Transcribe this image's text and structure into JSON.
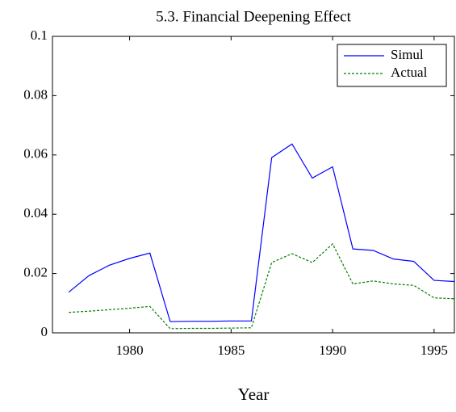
{
  "chart_data": {
    "type": "line",
    "title": "5.3. Financial Deepening Effect",
    "x_label": "Year",
    "x": [
      1977,
      1978,
      1979,
      1980,
      1981,
      1982,
      1983,
      1984,
      1985,
      1986,
      1987,
      1988,
      1989,
      1990,
      1991,
      1992,
      1993,
      1994,
      1995,
      1996
    ],
    "series": [
      {
        "name": "Simul",
        "color": "#0000ff",
        "dash": false,
        "values": [
          0.0137,
          0.0193,
          0.0228,
          0.0251,
          0.0269,
          0.0038,
          0.0039,
          0.0039,
          0.004,
          0.004,
          0.0591,
          0.0637,
          0.0522,
          0.056,
          0.0283,
          0.0278,
          0.0249,
          0.0241,
          0.0177,
          0.0173
        ]
      },
      {
        "name": "Actual",
        "color": "#007f00",
        "dash": true,
        "values": [
          0.0069,
          0.0073,
          0.0078,
          0.0083,
          0.0089,
          0.0014,
          0.0015,
          0.0015,
          0.0016,
          0.0017,
          0.0237,
          0.0267,
          0.0237,
          0.03,
          0.0165,
          0.0175,
          0.0165,
          0.016,
          0.0118,
          0.0115
        ]
      }
    ],
    "xlim": [
      1976.2,
      1996
    ],
    "xticks": [
      1980,
      1985,
      1990,
      1995
    ],
    "ylim": [
      0,
      0.1
    ],
    "yticks": [
      0,
      0.02,
      0.04,
      0.06,
      0.08,
      0.1
    ],
    "legend": "top-right"
  }
}
